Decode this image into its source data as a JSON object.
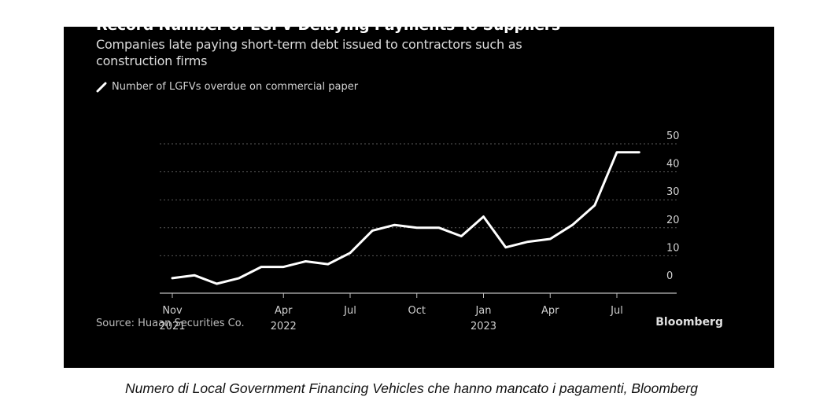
{
  "colors": {
    "background": "#000000",
    "line": "#ffffff",
    "grid": "#5a5a5a",
    "text": "#cfcfcf"
  },
  "legend": {
    "icon": "line-swatch-icon",
    "label": "Number of LGFVs overdue on commercial paper"
  },
  "source": "Source: Huaan Securities Co.",
  "brand": "Bloomberg",
  "caption": "Numero di Local Government Financing Vehicles che hanno mancato i pagamenti, Bloomberg",
  "chart_data": {
    "type": "line",
    "title": "Record Number of LGFV Delaying Payments To Suppliers",
    "subtitle": "Companies late paying short-term debt issued to contractors such as construction firms",
    "xlabel": "",
    "ylabel": "",
    "ylim": [
      0,
      50
    ],
    "y_ticks": [
      0,
      10,
      20,
      30,
      40,
      50
    ],
    "y_axis_side": "right",
    "grid": true,
    "legend_position": "top-left",
    "x_ticks": [
      {
        "month": "2021-11",
        "label": "Nov",
        "sublabel": "2021"
      },
      {
        "month": "2022-04",
        "label": "Apr",
        "sublabel": "2022"
      },
      {
        "month": "2022-07",
        "label": "Jul",
        "sublabel": ""
      },
      {
        "month": "2022-10",
        "label": "Oct",
        "sublabel": ""
      },
      {
        "month": "2023-01",
        "label": "Jan",
        "sublabel": "2023"
      },
      {
        "month": "2023-04",
        "label": "Apr",
        "sublabel": ""
      },
      {
        "month": "2023-07",
        "label": "Jul",
        "sublabel": ""
      }
    ],
    "series": [
      {
        "name": "Number of LGFVs overdue on commercial paper",
        "x": [
          "2021-11",
          "2021-12",
          "2022-01",
          "2022-02",
          "2022-03",
          "2022-04",
          "2022-05",
          "2022-06",
          "2022-07",
          "2022-08",
          "2022-09",
          "2022-10",
          "2022-11",
          "2022-12",
          "2023-01",
          "2023-02",
          "2023-03",
          "2023-04",
          "2023-05",
          "2023-06",
          "2023-07",
          "2023-08"
        ],
        "values": [
          2,
          3,
          0,
          2,
          6,
          6,
          8,
          7,
          11,
          19,
          21,
          20,
          20,
          17,
          24,
          13,
          15,
          16,
          21,
          28,
          47,
          47
        ]
      }
    ]
  }
}
